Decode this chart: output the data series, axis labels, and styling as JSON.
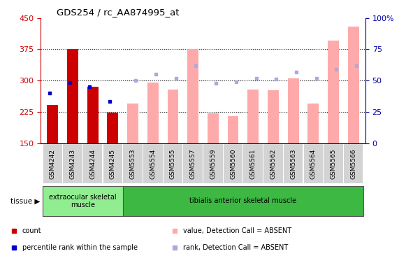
{
  "title": "GDS254 / rc_AA874995_at",
  "categories": [
    "GSM4242",
    "GSM4243",
    "GSM4244",
    "GSM4245",
    "GSM5553",
    "GSM5554",
    "GSM5555",
    "GSM5557",
    "GSM5559",
    "GSM5560",
    "GSM5561",
    "GSM5562",
    "GSM5563",
    "GSM5564",
    "GSM5565",
    "GSM5566"
  ],
  "red_bars": [
    242,
    375,
    285,
    223,
    null,
    null,
    null,
    null,
    null,
    null,
    null,
    null,
    null,
    null,
    null,
    null
  ],
  "blue_dots_val": [
    270,
    295,
    285,
    250,
    null,
    null,
    null,
    null,
    null,
    null,
    null,
    null,
    null,
    null,
    null,
    null
  ],
  "pink_bars": [
    null,
    null,
    null,
    null,
    245,
    295,
    278,
    375,
    222,
    215,
    278,
    277,
    305,
    245,
    395,
    430
  ],
  "lavender_dots_pct": [
    null,
    null,
    null,
    null,
    50,
    55,
    52,
    62,
    48,
    49,
    52,
    51,
    57,
    52,
    59,
    62
  ],
  "ylim_left": [
    150,
    450
  ],
  "ylim_right": [
    0,
    100
  ],
  "yticks_left": [
    150,
    225,
    300,
    375,
    450
  ],
  "yticks_right": [
    0,
    25,
    50,
    75,
    100
  ],
  "hlines": [
    225,
    300,
    375
  ],
  "tissue_groups": [
    {
      "text": "extraocular skeletal\nmuscle",
      "start": 0,
      "end": 4,
      "color": "#90EE90"
    },
    {
      "text": "tibialis anterior skeletal muscle",
      "start": 4,
      "end": 16,
      "color": "#3CB843"
    }
  ],
  "bar_width": 0.55,
  "red_color": "#CC0000",
  "blue_color": "#0000CC",
  "pink_color": "#FFAAAA",
  "lavender_color": "#AAAADD",
  "background_color": "#FFFFFF",
  "axis_left_color": "#CC0000",
  "axis_right_color": "#0000AA",
  "xtick_bg": "#D3D3D3"
}
